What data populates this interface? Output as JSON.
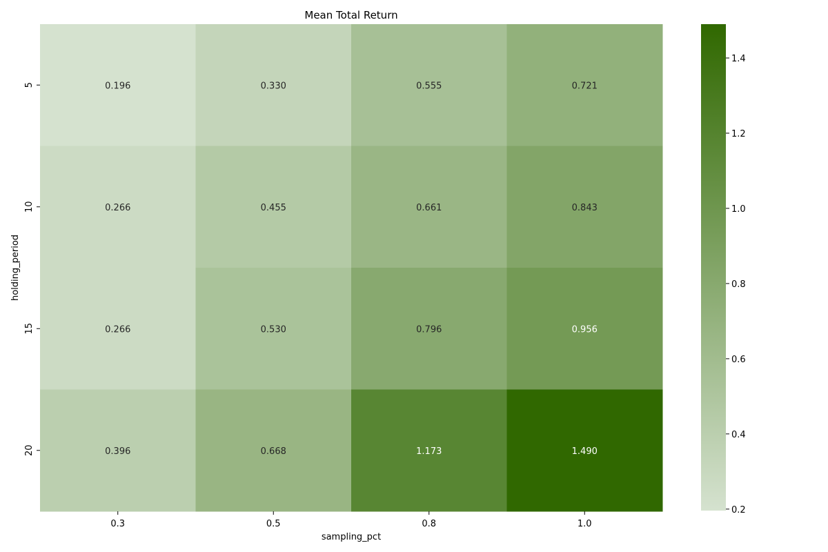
{
  "chart_data": {
    "type": "heatmap",
    "title": "Mean Total Return",
    "xlabel": "sampling_pct",
    "ylabel": "holding_period",
    "x_categories": [
      "0.3",
      "0.5",
      "0.8",
      "1.0"
    ],
    "y_categories": [
      "5",
      "10",
      "15",
      "20"
    ],
    "values": [
      [
        0.196,
        0.33,
        0.555,
        0.721
      ],
      [
        0.266,
        0.455,
        0.661,
        0.843
      ],
      [
        0.266,
        0.53,
        0.796,
        0.956
      ],
      [
        0.396,
        0.668,
        1.173,
        1.49
      ]
    ],
    "value_labels": [
      [
        "0.196",
        "0.330",
        "0.555",
        "0.721"
      ],
      [
        "0.266",
        "0.455",
        "0.661",
        "0.843"
      ],
      [
        "0.266",
        "0.530",
        "0.796",
        "0.956"
      ],
      [
        "0.396",
        "0.668",
        "1.173",
        "1.490"
      ]
    ],
    "colorbar": {
      "range": [
        0.196,
        1.49
      ],
      "ticks": [
        "0.2",
        "0.4",
        "0.6",
        "0.8",
        "1.0",
        "1.2",
        "1.4"
      ],
      "tick_values": [
        0.2,
        0.4,
        0.6,
        0.8,
        1.0,
        1.2,
        1.4
      ],
      "color_low": "#d5e2cf",
      "color_high": "#306800"
    },
    "grid": false
  }
}
